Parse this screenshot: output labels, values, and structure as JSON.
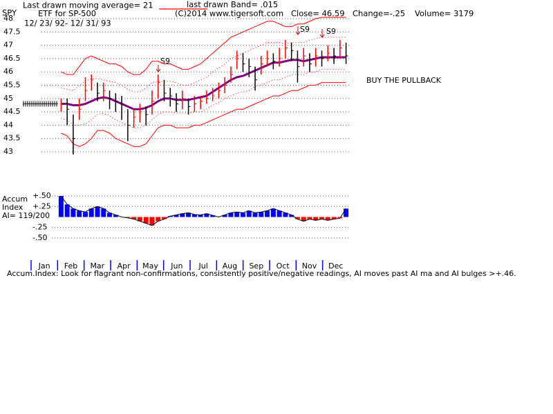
{
  "header": {
    "symbol": "SPY",
    "ma_text": "Last drawn moving average= 21",
    "band_text": "last drawn Band= .015",
    "band_color": "#ff0000",
    "name": "ETF for SP-500",
    "copyright": "(C)2014 www.tigersoft.com",
    "close": "Close= 46.59",
    "change": "Change=-.25",
    "volume": "Volume= 3179",
    "dates": "12/ 23/ 92- 12/ 31/ 93"
  },
  "chart_data": {
    "type": "ohlc",
    "ylim": [
      42.75,
      48.25
    ],
    "yticks": [
      43,
      43.5,
      44,
      44.5,
      45,
      45.5,
      46,
      46.5,
      47,
      47.5,
      48
    ],
    "grid": true,
    "up_color": "#ff0000",
    "down_color": "#000000",
    "months": [
      "Jan",
      "Feb",
      "Mar",
      "Apr",
      "May",
      "Jun",
      "Jul",
      "Aug",
      "Sep",
      "Oct",
      "Nov",
      "Dec"
    ],
    "month_tick_color": "#0000ff",
    "closes": [
      44.8,
      44.6,
      43.5,
      44.6,
      45.3,
      45.7,
      45.2,
      45.3,
      45.0,
      44.9,
      44.8,
      44.0,
      44.3,
      44.5,
      44.4,
      44.9,
      45.6,
      45.2,
      45.1,
      44.8,
      45.0,
      44.7,
      44.8,
      44.9,
      45.0,
      45.1,
      45.3,
      45.5,
      45.9,
      46.5,
      46.3,
      46.2,
      45.7,
      46.3,
      46.5,
      46.4,
      46.5,
      46.9,
      46.8,
      46.2,
      46.6,
      46.3,
      46.6,
      46.5,
      46.7,
      46.6,
      46.9,
      46.6
    ],
    "highs": [
      45.0,
      45.0,
      44.4,
      45.0,
      45.8,
      45.9,
      45.6,
      45.6,
      45.3,
      45.2,
      45.1,
      44.6,
      44.6,
      44.8,
      44.7,
      45.3,
      45.9,
      45.7,
      45.4,
      45.2,
      45.3,
      45.0,
      45.1,
      45.1,
      45.3,
      45.4,
      45.6,
      45.8,
      46.2,
      46.8,
      46.7,
      46.5,
      46.2,
      46.6,
      46.8,
      46.7,
      46.9,
      47.2,
      47.1,
      46.8,
      46.9,
      46.7,
      46.9,
      46.8,
      47.0,
      46.9,
      47.2,
      47.1
    ],
    "lows": [
      44.5,
      44.0,
      42.9,
      44.2,
      44.9,
      45.3,
      44.9,
      44.9,
      44.6,
      44.5,
      44.2,
      43.4,
      43.9,
      44.1,
      44.0,
      44.4,
      45.0,
      44.9,
      44.7,
      44.5,
      44.6,
      44.4,
      44.5,
      44.6,
      44.8,
      44.9,
      45.0,
      45.2,
      45.6,
      46.1,
      46.0,
      45.8,
      45.3,
      45.9,
      46.2,
      46.1,
      46.2,
      46.5,
      46.4,
      45.6,
      46.2,
      46.0,
      46.2,
      46.2,
      46.4,
      46.3,
      46.5,
      46.3
    ],
    "lines": [
      {
        "color": "#ff0000",
        "style": "solid",
        "values": [
          46.0,
          45.9,
          45.9,
          46.2,
          46.5,
          46.6,
          46.5,
          46.4,
          46.3,
          46.3,
          46.2,
          46.0,
          45.9,
          45.9,
          46.1,
          46.4,
          46.4,
          46.3,
          46.3,
          46.2,
          46.1,
          46.1,
          46.2,
          46.3,
          46.5,
          46.7,
          46.9,
          47.1,
          47.3,
          47.4,
          47.5,
          47.6,
          47.7,
          47.8,
          47.9,
          47.9,
          47.8,
          47.7,
          47.7,
          47.8,
          47.8,
          47.9,
          48.0,
          48.05,
          48.05,
          48.05,
          48.05,
          48.05
        ]
      },
      {
        "color": "#ff0000",
        "style": "dotted",
        "values": [
          45.4,
          45.35,
          45.3,
          45.5,
          45.65,
          45.75,
          45.75,
          45.7,
          45.65,
          45.6,
          45.5,
          45.35,
          45.25,
          45.25,
          45.4,
          45.6,
          45.65,
          45.65,
          45.65,
          45.6,
          45.5,
          45.5,
          45.6,
          45.7,
          45.8,
          46.0,
          46.15,
          46.3,
          46.5,
          46.6,
          46.7,
          46.8,
          46.9,
          47.0,
          47.1,
          47.1,
          47.1,
          47.05,
          47.1,
          47.1,
          47.1,
          47.2,
          47.25,
          47.3,
          47.3,
          47.3,
          47.3,
          47.3
        ]
      },
      {
        "color": "#800080",
        "style": "thick",
        "values": [
          44.8,
          44.8,
          44.75,
          44.75,
          44.8,
          44.9,
          45.0,
          45.05,
          45.0,
          44.9,
          44.8,
          44.7,
          44.6,
          44.6,
          44.65,
          44.75,
          44.9,
          45.0,
          45.0,
          44.95,
          44.95,
          44.95,
          45.0,
          45.05,
          45.1,
          45.25,
          45.4,
          45.55,
          45.7,
          45.8,
          45.85,
          45.95,
          46.05,
          46.15,
          46.25,
          46.35,
          46.35,
          46.4,
          46.45,
          46.45,
          46.4,
          46.45,
          46.5,
          46.55,
          46.55,
          46.55,
          46.55,
          46.55
        ]
      },
      {
        "color": "#ff0000",
        "style": "dotted",
        "values": [
          44.25,
          44.2,
          44.0,
          44.0,
          44.05,
          44.2,
          44.4,
          44.45,
          44.35,
          44.2,
          44.1,
          44.0,
          43.9,
          43.9,
          44.0,
          44.2,
          44.4,
          44.5,
          44.5,
          44.45,
          44.45,
          44.45,
          44.5,
          44.5,
          44.6,
          44.75,
          44.85,
          45.0,
          45.1,
          45.2,
          45.25,
          45.3,
          45.45,
          45.5,
          45.6,
          45.7,
          45.7,
          45.8,
          45.9,
          45.9,
          45.9,
          46.0,
          46.0,
          46.1,
          46.1,
          46.1,
          46.1,
          46.1
        ]
      },
      {
        "color": "#ff0000",
        "style": "solid",
        "values": [
          43.7,
          43.6,
          43.3,
          43.2,
          43.3,
          43.5,
          43.8,
          43.8,
          43.7,
          43.5,
          43.4,
          43.3,
          43.2,
          43.2,
          43.3,
          43.6,
          43.9,
          44.0,
          44.0,
          43.9,
          43.9,
          43.9,
          44.0,
          44.0,
          44.1,
          44.2,
          44.3,
          44.4,
          44.5,
          44.6,
          44.6,
          44.7,
          44.8,
          44.9,
          45.0,
          45.1,
          45.1,
          45.2,
          45.3,
          45.3,
          45.4,
          45.5,
          45.5,
          45.6,
          45.6,
          45.6,
          45.6,
          45.6
        ]
      }
    ],
    "annotations": [
      "S9",
      "S9",
      "S9",
      "BUY THE PULLBACK"
    ],
    "accum": {
      "labels": [
        "Accum",
        "Index",
        "AI= 119/200"
      ],
      "ylim": [
        -0.6,
        0.6
      ],
      "yticks": [
        {
          "value": 0.5,
          "label": "+.50"
        },
        {
          "value": 0.25,
          "label": "+.25"
        },
        {
          "value": -0.25,
          "label": "-.25"
        },
        {
          "value": -0.5,
          "label": "-.50"
        }
      ],
      "pos_color": "#0000ff",
      "neg_color": "#ff0000",
      "values": [
        0.5,
        0.3,
        0.2,
        0.15,
        0.12,
        0.2,
        0.25,
        0.2,
        0.1,
        0.05,
        0.0,
        -0.02,
        -0.05,
        -0.1,
        -0.15,
        -0.2,
        -0.1,
        -0.05,
        0.02,
        0.05,
        0.08,
        0.1,
        0.06,
        0.05,
        0.08,
        0.04,
        0.0,
        0.05,
        0.1,
        0.12,
        0.1,
        0.15,
        0.1,
        0.12,
        0.15,
        0.2,
        0.15,
        0.1,
        0.05,
        -0.05,
        -0.1,
        -0.05,
        -0.08,
        -0.05,
        -0.08,
        -0.05,
        -0.03,
        0.2
      ]
    },
    "footer": "Accum.Index: Look for flagrant non-confirmations, consistently positive/negative readings, AI moves past AI ma and AI bulges >+.46."
  }
}
